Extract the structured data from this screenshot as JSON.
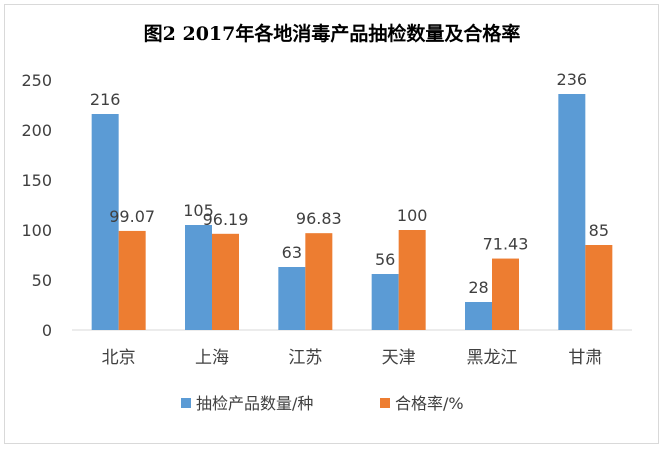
{
  "chart_data": {
    "type": "bar",
    "title": "图2 2017年各地消毒产品抽检数量及合格率",
    "categories": [
      "北京",
      "上海",
      "江苏",
      "天津",
      "黑龙江",
      "甘肃"
    ],
    "series": [
      {
        "name": "抽检产品数量/种",
        "values": [
          216,
          105,
          63,
          56,
          28,
          236
        ],
        "labels": [
          "216",
          "105",
          "63",
          "56",
          "28",
          "236"
        ],
        "color": "#5b9bd5"
      },
      {
        "name": "合格率/%",
        "values": [
          99.07,
          96.19,
          96.83,
          100,
          71.43,
          85
        ],
        "labels": [
          "99.07",
          "96.19",
          "96.83",
          "100",
          "71.43",
          "85"
        ],
        "color": "#ed7d31"
      }
    ],
    "ylim": [
      0,
      250
    ],
    "yticks": [
      "0",
      "50",
      "100",
      "150",
      "200",
      "250"
    ],
    "grid": false,
    "legend": "bottom"
  }
}
